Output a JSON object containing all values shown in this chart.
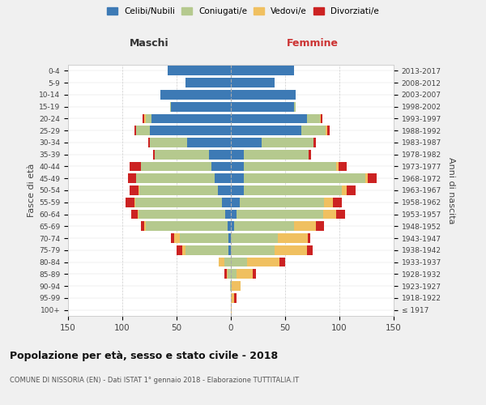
{
  "age_groups": [
    "100+",
    "95-99",
    "90-94",
    "85-89",
    "80-84",
    "75-79",
    "70-74",
    "65-69",
    "60-64",
    "55-59",
    "50-54",
    "45-49",
    "40-44",
    "35-39",
    "30-34",
    "25-29",
    "20-24",
    "15-19",
    "10-14",
    "5-9",
    "0-4"
  ],
  "birth_years": [
    "≤ 1917",
    "1918-1922",
    "1923-1927",
    "1928-1932",
    "1933-1937",
    "1938-1942",
    "1943-1947",
    "1948-1952",
    "1953-1957",
    "1958-1962",
    "1963-1967",
    "1968-1972",
    "1973-1977",
    "1978-1982",
    "1983-1987",
    "1988-1992",
    "1993-1997",
    "1998-2002",
    "2003-2007",
    "2008-2012",
    "2013-2017"
  ],
  "maschi": {
    "celibi": [
      0,
      0,
      0,
      0,
      0,
      2,
      2,
      3,
      5,
      8,
      12,
      15,
      18,
      20,
      40,
      75,
      73,
      55,
      65,
      42,
      58
    ],
    "coniugati": [
      0,
      0,
      1,
      3,
      6,
      40,
      45,
      75,
      80,
      80,
      72,
      72,
      65,
      50,
      35,
      12,
      5,
      1,
      0,
      0,
      0
    ],
    "vedovi": [
      0,
      0,
      0,
      1,
      5,
      3,
      5,
      2,
      1,
      1,
      1,
      0,
      0,
      0,
      0,
      0,
      2,
      0,
      0,
      0,
      0
    ],
    "divorziati": [
      0,
      0,
      0,
      2,
      0,
      5,
      3,
      3,
      6,
      8,
      8,
      8,
      10,
      2,
      1,
      2,
      1,
      0,
      0,
      0,
      0
    ]
  },
  "femmine": {
    "nubili": [
      0,
      0,
      0,
      0,
      0,
      0,
      0,
      3,
      5,
      8,
      12,
      12,
      12,
      12,
      28,
      65,
      70,
      58,
      60,
      40,
      58
    ],
    "coniugate": [
      0,
      0,
      1,
      5,
      15,
      40,
      43,
      55,
      80,
      78,
      90,
      112,
      85,
      60,
      48,
      22,
      12,
      2,
      0,
      0,
      0
    ],
    "vedove": [
      1,
      3,
      8,
      15,
      30,
      30,
      28,
      20,
      12,
      8,
      5,
      2,
      2,
      0,
      0,
      2,
      1,
      0,
      0,
      0,
      0
    ],
    "divorziate": [
      0,
      2,
      0,
      3,
      5,
      5,
      2,
      8,
      8,
      8,
      8,
      8,
      8,
      2,
      2,
      2,
      1,
      0,
      0,
      0,
      0
    ]
  },
  "colors": {
    "celibi": "#3d7ab5",
    "coniugati": "#b5c98e",
    "vedovi": "#f0c060",
    "divorziati": "#cc2222"
  },
  "xlim": 150,
  "title": "Popolazione per età, sesso e stato civile - 2018",
  "subtitle": "COMUNE DI NISSORIA (EN) - Dati ISTAT 1° gennaio 2018 - Elaborazione TUTTITALIA.IT",
  "ylabel_left": "Fasce di età",
  "ylabel_right": "Anni di nascita",
  "xlabel_maschi": "Maschi",
  "xlabel_femmine": "Femmine",
  "bg_color": "#f0f0f0",
  "plot_bg": "#ffffff",
  "legend_labels": [
    "Celibi/Nubili",
    "Coniugati/e",
    "Vedovi/e",
    "Divorziati/e"
  ]
}
